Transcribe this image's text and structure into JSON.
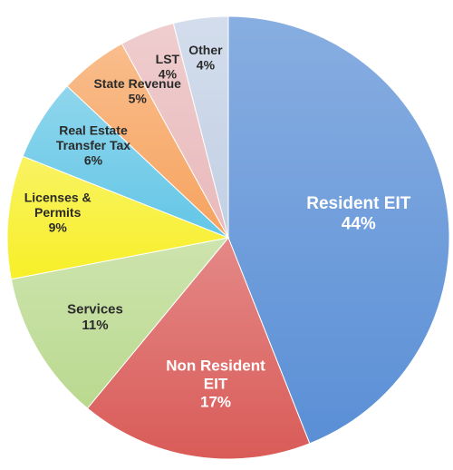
{
  "chart_data": {
    "type": "pie",
    "title": "",
    "start": "12 o'clock",
    "direction": "clockwise",
    "slices": [
      {
        "label": [
          "Resident EIT"
        ],
        "value": 44,
        "pct": "44%",
        "color": "#5a8fd6",
        "label_color": "#ffffff"
      },
      {
        "label": [
          "Non Resident",
          "EIT"
        ],
        "value": 17,
        "pct": "17%",
        "color": "#d95b58",
        "label_color": "#ffffff"
      },
      {
        "label": [
          "Services"
        ],
        "value": 11,
        "pct": "11%",
        "color": "#bad98f",
        "label_color": "#2b2b2b"
      },
      {
        "label": [
          "Licenses &",
          "Permits"
        ],
        "value": 9,
        "pct": "9%",
        "color": "#f7ef27",
        "label_color": "#2b2b2b"
      },
      {
        "label": [
          "Real Estate",
          "Transfer Tax"
        ],
        "value": 6,
        "pct": "6%",
        "color": "#63c6e6",
        "label_color": "#2b2b2b"
      },
      {
        "label": [
          "State Revenue"
        ],
        "value": 5,
        "pct": "5%",
        "color": "#f6a35f",
        "label_color": "#2b2b2b"
      },
      {
        "label": [
          "LST"
        ],
        "value": 4,
        "pct": "4%",
        "color": "#e9b9bb",
        "label_color": "#2b2b2b"
      },
      {
        "label": [
          "Other"
        ],
        "value": 4,
        "pct": "4%",
        "color": "#c2d0e4",
        "label_color": "#2b2b2b"
      }
    ]
  }
}
